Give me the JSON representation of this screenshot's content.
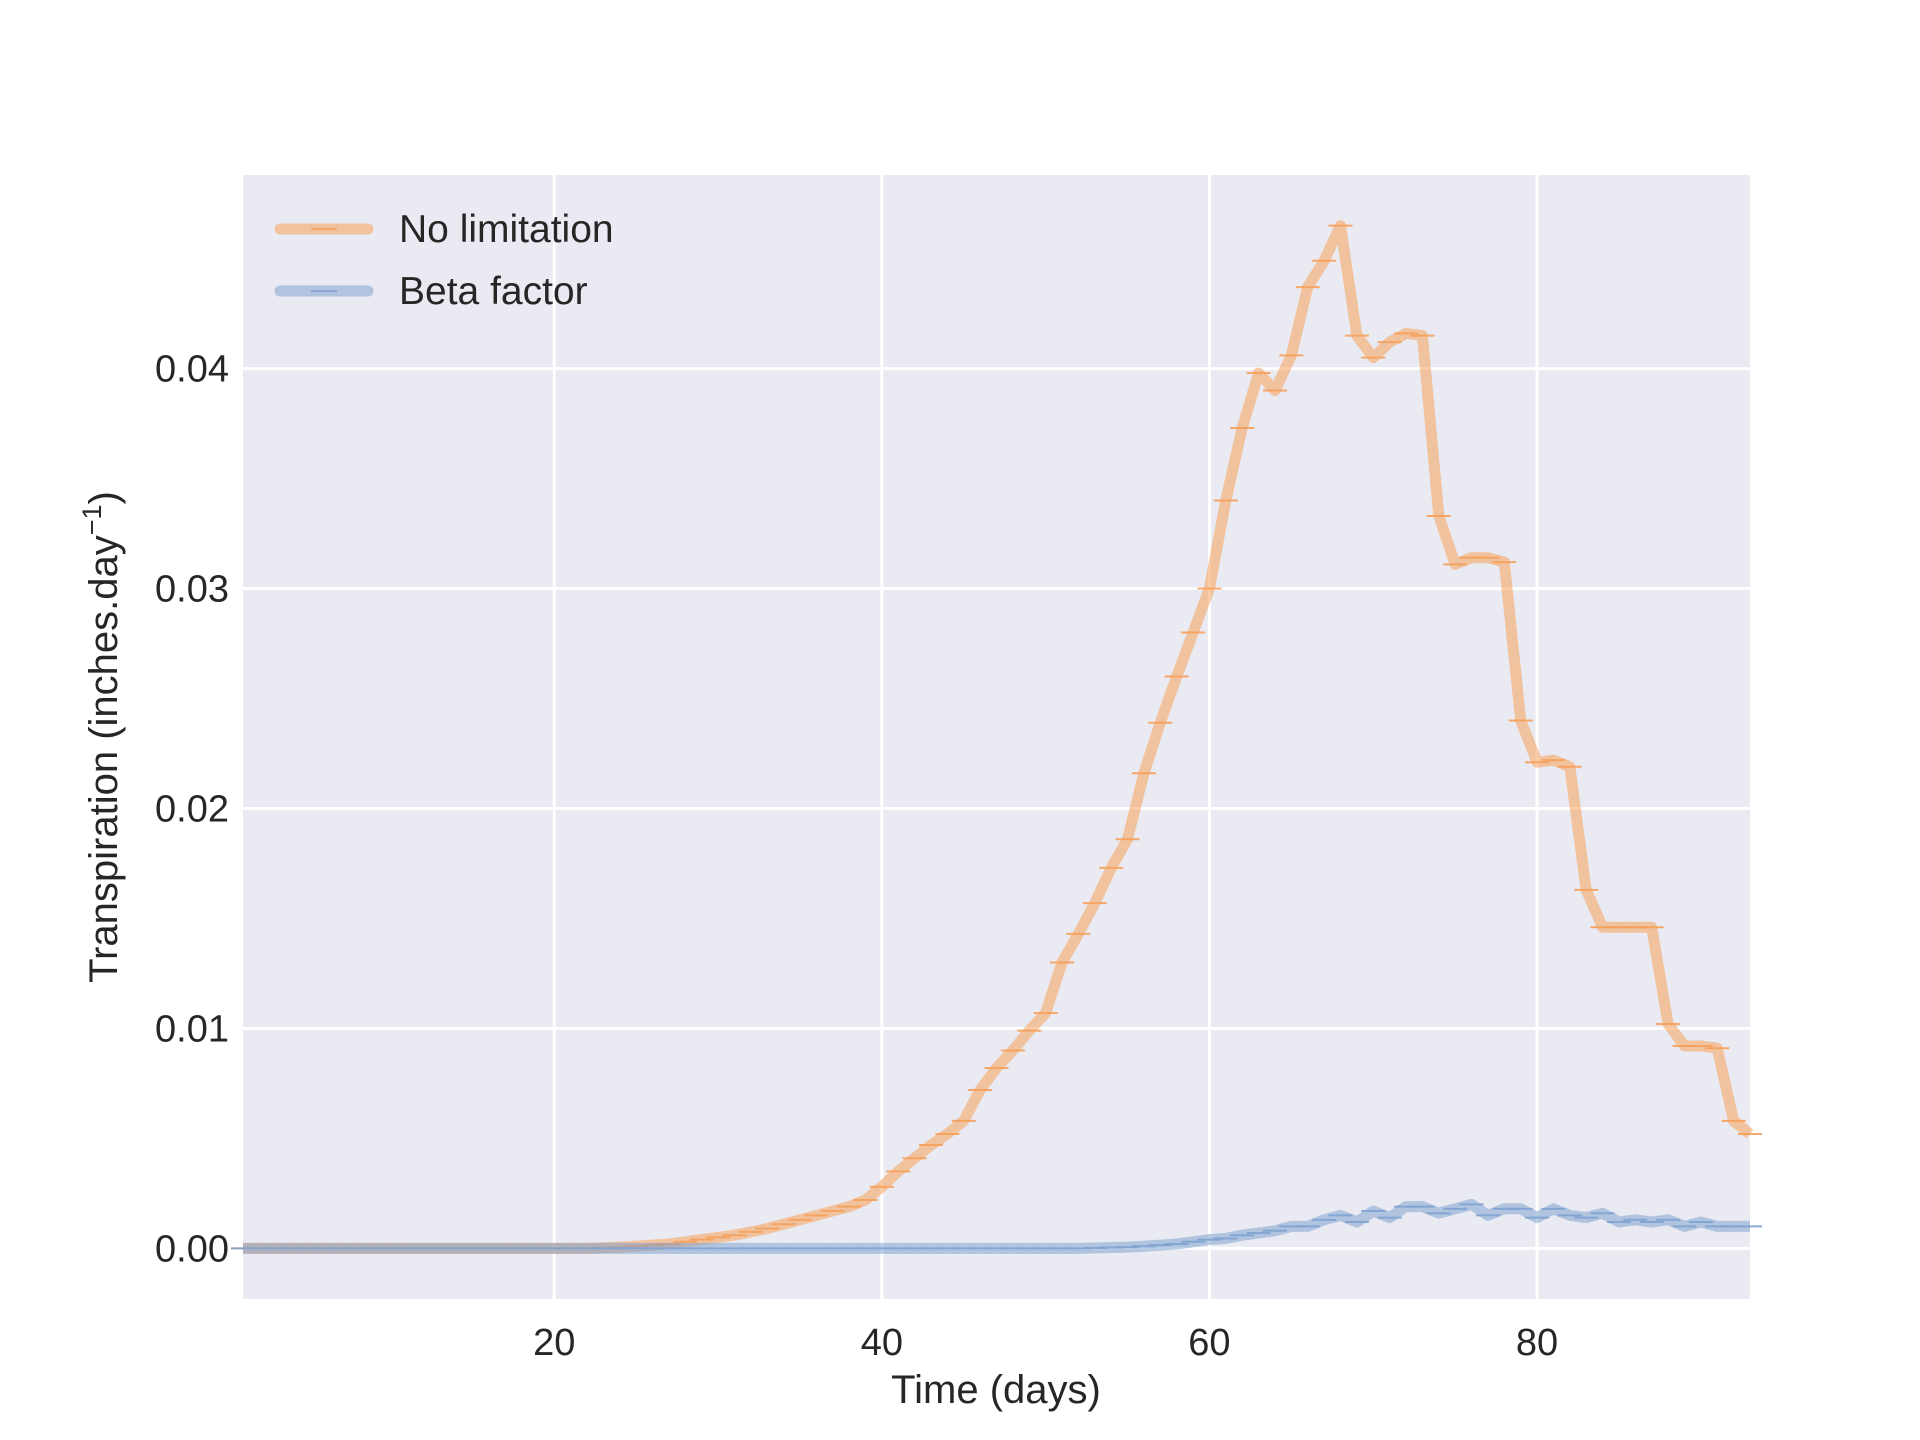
{
  "chart_data": {
    "type": "line",
    "title": "",
    "xlabel": "Time (days)",
    "ylabel_main": "Transpiration (inches.day",
    "ylabel_sup": "−1",
    "ylabel_close": ")",
    "xlim": [
      1,
      93
    ],
    "ylim": [
      -0.0023,
      0.0488
    ],
    "xticks": [
      20,
      40,
      60,
      80
    ],
    "xtick_labels": [
      "20",
      "40",
      "60",
      "80"
    ],
    "yticks": [
      0.0,
      0.01,
      0.02,
      0.03,
      0.04
    ],
    "ytick_labels": [
      "0.00",
      "0.01",
      "0.02",
      "0.03",
      "0.04"
    ],
    "grid": true,
    "legend_position": "top-left",
    "background": "#eaeaf2",
    "grid_color": "#ffffff",
    "x": [
      1,
      2,
      3,
      4,
      5,
      6,
      7,
      8,
      9,
      10,
      11,
      12,
      13,
      14,
      15,
      16,
      17,
      18,
      19,
      20,
      21,
      22,
      23,
      24,
      25,
      26,
      27,
      28,
      29,
      30,
      31,
      32,
      33,
      34,
      35,
      36,
      37,
      38,
      39,
      40,
      41,
      42,
      43,
      44,
      45,
      46,
      47,
      48,
      49,
      50,
      51,
      52,
      53,
      54,
      55,
      56,
      57,
      58,
      59,
      60,
      61,
      62,
      63,
      64,
      65,
      66,
      67,
      68,
      69,
      70,
      71,
      72,
      73,
      74,
      75,
      76,
      77,
      78,
      79,
      80,
      81,
      82,
      83,
      84,
      85,
      86,
      87,
      88,
      89,
      90,
      91,
      92,
      93
    ],
    "series": [
      {
        "name": "No limitation",
        "color": "#f5a05a",
        "values": [
          0,
          0,
          0,
          0,
          0,
          0,
          0,
          0,
          0,
          0,
          0,
          0,
          0,
          0,
          0,
          0,
          0,
          0,
          0,
          0,
          0,
          0,
          3e-05,
          6e-05,
          0.0001,
          0.00015,
          0.0002,
          0.0003,
          0.0004,
          0.0005,
          0.0006,
          0.00075,
          0.0009,
          0.0011,
          0.0013,
          0.0015,
          0.0017,
          0.0019,
          0.0022,
          0.0028,
          0.0035,
          0.0041,
          0.0047,
          0.0052,
          0.0058,
          0.0072,
          0.0082,
          0.009,
          0.0099,
          0.0107,
          0.013,
          0.0143,
          0.0157,
          0.0173,
          0.0186,
          0.0216,
          0.0239,
          0.026,
          0.028,
          0.03,
          0.034,
          0.0373,
          0.0398,
          0.039,
          0.0406,
          0.0437,
          0.0449,
          0.0465,
          0.0415,
          0.0405,
          0.0412,
          0.0416,
          0.0415,
          0.0333,
          0.0311,
          0.0314,
          0.0314,
          0.0312,
          0.024,
          0.0221,
          0.0222,
          0.0219,
          0.0163,
          0.0146,
          0.0146,
          0.0146,
          0.0146,
          0.0102,
          0.0092,
          0.0092,
          0.0091,
          0.0058,
          0.0052
        ]
      },
      {
        "name": "Beta factor",
        "color": "#7fa3d0",
        "values": [
          0,
          0,
          0,
          0,
          0,
          0,
          0,
          0,
          0,
          0,
          0,
          0,
          0,
          0,
          0,
          0,
          0,
          0,
          0,
          0,
          0,
          0,
          0,
          0,
          0,
          0,
          0,
          0,
          0,
          0,
          0,
          0,
          0,
          0,
          0,
          0,
          0,
          0,
          0,
          0,
          0,
          0,
          0,
          0,
          0,
          0,
          0,
          0,
          0,
          0,
          0,
          0,
          2e-05,
          4e-05,
          6e-05,
          0.0001,
          0.00015,
          0.0002,
          0.0003,
          0.0004,
          0.00045,
          0.0006,
          0.0007,
          0.0008,
          0.001,
          0.001,
          0.0013,
          0.0015,
          0.0012,
          0.0017,
          0.0014,
          0.0019,
          0.0019,
          0.0016,
          0.0018,
          0.002,
          0.0015,
          0.0018,
          0.0018,
          0.0014,
          0.0018,
          0.0015,
          0.0014,
          0.0016,
          0.0012,
          0.0013,
          0.0012,
          0.0013,
          0.001,
          0.0012,
          0.001,
          0.001,
          0.001
        ]
      }
    ]
  }
}
